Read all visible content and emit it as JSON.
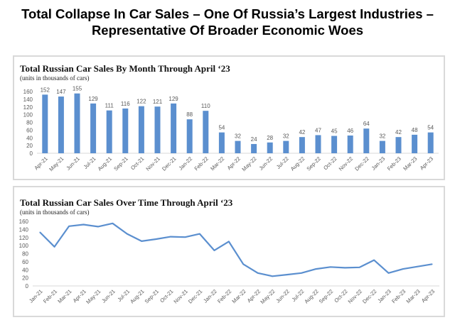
{
  "title": "Total Collapse In Car Sales – One Of Russia’s Largest Industries – Representative Of Broader Economic Woes",
  "chart_data": [
    {
      "type": "bar",
      "title": "Total Russian Car Sales By Month Through April ‘23",
      "subtitle": "(units in thousands of cars)",
      "categories": [
        "Apr-21",
        "May-21",
        "Jun-21",
        "Jul-21",
        "Aug-21",
        "Sep-21",
        "Oct-21",
        "Nov-21",
        "Dec-21",
        "Jan-22",
        "Feb-22",
        "Mar-22",
        "Apr-22",
        "May-22",
        "Jun-22",
        "Jul-22",
        "Aug-22",
        "Sep-22",
        "Oct-22",
        "Nov-22",
        "Dec-22",
        "Jan-23",
        "Feb-23",
        "Mar-23",
        "Apr-23"
      ],
      "values": [
        152,
        147,
        155,
        129,
        111,
        116,
        122,
        121,
        129,
        88,
        110,
        54,
        32,
        24,
        28,
        32,
        42,
        47,
        45,
        46,
        64,
        32,
        42,
        48,
        54
      ],
      "ylim": [
        0,
        160
      ],
      "yticks": [
        0,
        20,
        40,
        60,
        80,
        100,
        120,
        140,
        160
      ],
      "data_labels": true,
      "color": "#5b8fcf"
    },
    {
      "type": "line",
      "title": "Total Russian Car Sales Over Time Through April ‘23",
      "subtitle": "(units in thousands of cars)",
      "categories": [
        "Jan-21",
        "Feb-21",
        "Mar-21",
        "Apr-21",
        "May-21",
        "Jun-21",
        "Jul-21",
        "Aug-21",
        "Sep-21",
        "Oct-21",
        "Nov-21",
        "Dec-21",
        "Jan-22",
        "Feb-22",
        "Mar-22",
        "Apr-22",
        "May-22",
        "Jun-22",
        "Jul-22",
        "Aug-22",
        "Sep-22",
        "Oct-22",
        "Nov-22",
        "Dec-22",
        "Jan-23",
        "Feb-23",
        "Mar-23",
        "Apr-23"
      ],
      "values": [
        133,
        97,
        148,
        152,
        147,
        155,
        129,
        111,
        116,
        122,
        121,
        129,
        88,
        110,
        54,
        32,
        24,
        28,
        32,
        42,
        47,
        45,
        46,
        64,
        32,
        42,
        48,
        54
      ],
      "ylim": [
        0,
        160
      ],
      "yticks": [
        0,
        20,
        40,
        60,
        80,
        100,
        120,
        140,
        160
      ],
      "color": "#5b8fcf"
    }
  ]
}
